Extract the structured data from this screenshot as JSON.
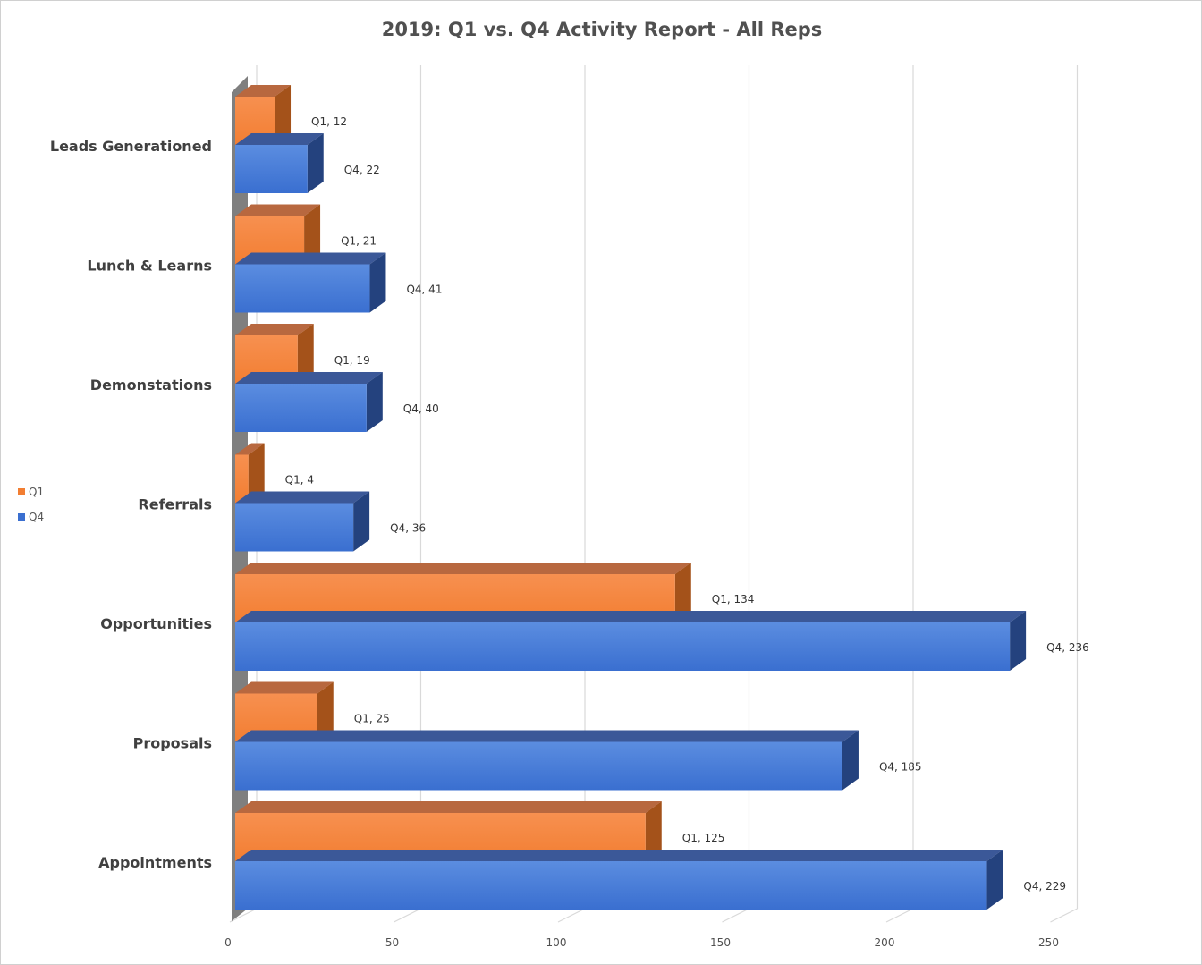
{
  "chart_data": {
    "type": "bar",
    "orientation": "horizontal",
    "style": "3d-clustered",
    "title": "2019: Q1 vs. Q4 Activity Report - All Reps",
    "categories": [
      "Leads Generationed",
      "Lunch & Learns",
      "Demonstations",
      "Referrals",
      "Opportunities",
      "Proposals",
      "Appointments"
    ],
    "series": [
      {
        "name": "Q1",
        "values": [
          12,
          21,
          19,
          4,
          134,
          25,
          125
        ]
      },
      {
        "name": "Q4",
        "values": [
          22,
          41,
          40,
          36,
          236,
          185,
          229
        ]
      }
    ],
    "xlim": [
      0,
      250
    ],
    "ticks": [
      0,
      50,
      100,
      150,
      200,
      250
    ],
    "tick_labels": [
      "0",
      "50",
      "100",
      "150",
      "200",
      "250"
    ],
    "data_label_format": "{series}, {value}",
    "grid": true,
    "legend_position": "left",
    "colors": {
      "Q1": {
        "front": "#f27e32",
        "top": "#b8683f",
        "side": "#a4521a"
      },
      "Q4": {
        "front": "#3a6fd0",
        "top": "#3b5898",
        "side": "#24427e"
      },
      "gridline": "#d9d9d9",
      "wall": "#7f7f7f"
    }
  }
}
